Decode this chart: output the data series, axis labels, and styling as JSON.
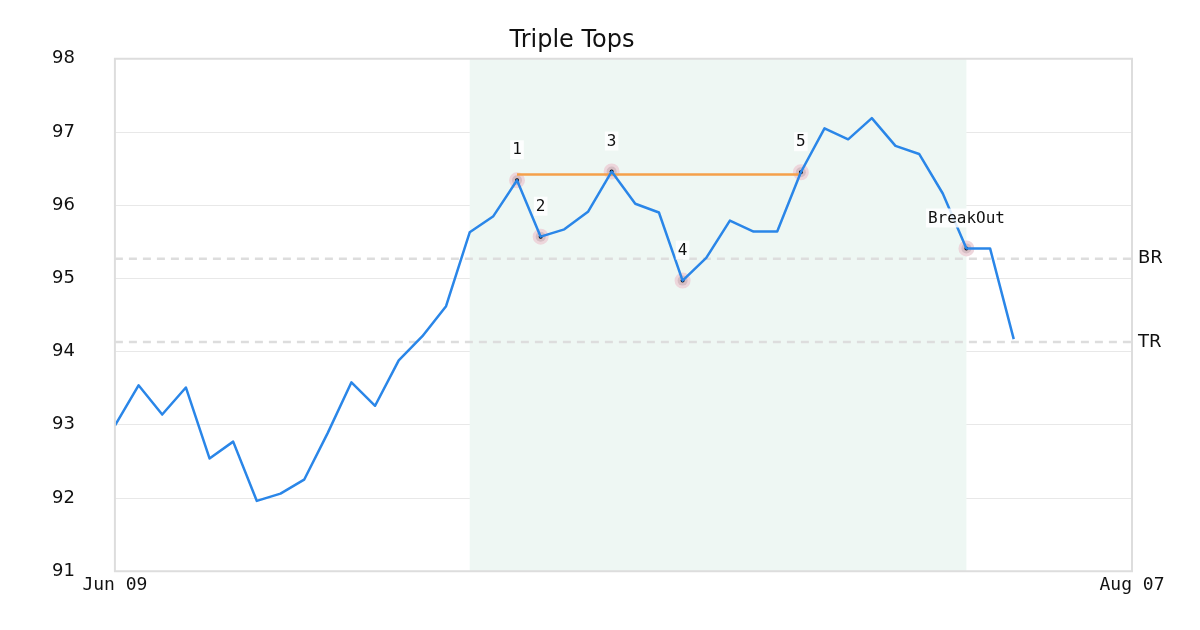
{
  "chart_data": {
    "type": "line",
    "title": "Triple Tops",
    "categories": [
      "Jun 09",
      null,
      null,
      null,
      null,
      null,
      null,
      null,
      null,
      null,
      null,
      null,
      null,
      null,
      null,
      null,
      null,
      null,
      null,
      null,
      null,
      null,
      null,
      null,
      null,
      null,
      null,
      null,
      null,
      null,
      null,
      null,
      null,
      null,
      null,
      null,
      null,
      null,
      null,
      null,
      null,
      null,
      null,
      "Aug 07"
    ],
    "ylim": [
      91,
      98
    ],
    "yticks": [
      91,
      92,
      93,
      94,
      95,
      96,
      97,
      98
    ],
    "grid": "y",
    "legend": false,
    "series": [
      {
        "type": "line",
        "color": "#2a86e8",
        "values": [
          92.99,
          93.54,
          93.14,
          93.51,
          92.54,
          92.77,
          91.96,
          92.06,
          92.25,
          92.89,
          93.58,
          93.26,
          93.88,
          94.21,
          94.62,
          95.63,
          95.85,
          96.34,
          95.57,
          95.67,
          95.91,
          96.46,
          96.02,
          95.9,
          94.97,
          95.28,
          95.79,
          95.64,
          95.64,
          96.45,
          97.05,
          96.9,
          97.19,
          96.81,
          96.7,
          96.16,
          95.41,
          95.41,
          94.17,
          null,
          null,
          null,
          null,
          null
        ]
      },
      {
        "type": "line",
        "color": "#f5a04a",
        "values": [
          null,
          null,
          null,
          null,
          null,
          null,
          null,
          null,
          null,
          null,
          null,
          null,
          null,
          null,
          null,
          null,
          null,
          96.42,
          96.42,
          96.42,
          96.42,
          96.42,
          96.42,
          96.42,
          96.42,
          96.42,
          96.42,
          96.42,
          96.42,
          96.42,
          null,
          null,
          null,
          null,
          null,
          null,
          null,
          null,
          null,
          null,
          null,
          null,
          null,
          null
        ]
      },
      {
        "type": "scatter",
        "color": "#000000",
        "marker": "circle",
        "values": [
          null,
          null,
          null,
          null,
          null,
          null,
          null,
          null,
          null,
          null,
          null,
          null,
          null,
          null,
          null,
          null,
          null,
          96.34,
          95.57,
          null,
          null,
          96.46,
          null,
          null,
          94.97,
          null,
          null,
          null,
          null,
          96.45,
          null,
          null,
          null,
          null,
          null,
          null,
          95.41,
          null,
          null,
          null,
          null,
          null,
          null,
          null
        ]
      }
    ],
    "annotations": [
      "1",
      "2",
      "3",
      "4",
      "5",
      "BreakOut"
    ],
    "ref_lines": [
      {
        "axis": "y",
        "value": 95.27,
        "label": "BR",
        "color": "#dddddd",
        "line_style": "dashed"
      },
      {
        "axis": "y",
        "value": 94.13,
        "label": "TR",
        "color": "#dddddd",
        "line_style": "dashed"
      }
    ]
  }
}
